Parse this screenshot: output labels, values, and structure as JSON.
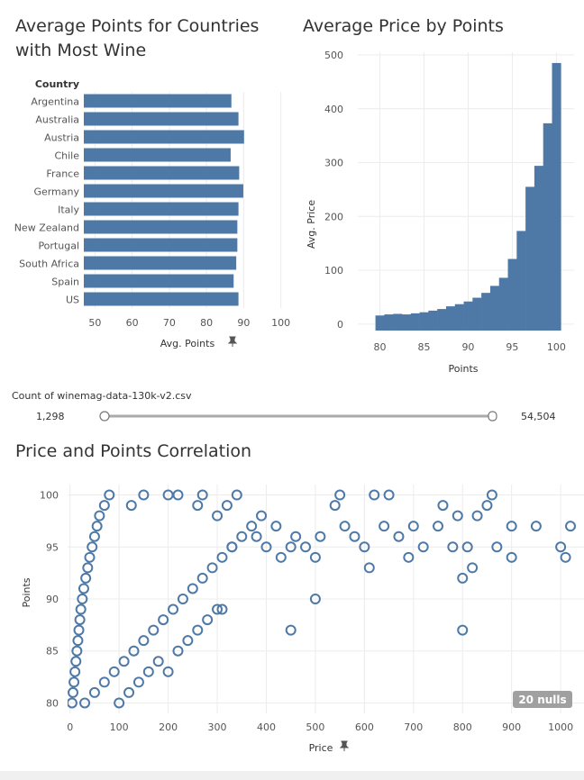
{
  "colors": {
    "bar": "#4e79a7",
    "grid": "#ececec",
    "axis": "#555555",
    "nulls_bg": "#a0a0a0"
  },
  "chart_data": [
    {
      "type": "bar",
      "orientation": "horizontal",
      "title": "Average Points for Countries with Most Wine",
      "title_lines": [
        "Average Points for Countries",
        "with Most Wine"
      ],
      "category_header": "Country",
      "categories": [
        "Argentina",
        "Australia",
        "Austria",
        "Chile",
        "France",
        "Germany",
        "Italy",
        "New Zealand",
        "Portugal",
        "South Africa",
        "Spain",
        "US"
      ],
      "values": [
        86.7,
        88.6,
        90.1,
        86.5,
        88.8,
        89.9,
        88.6,
        88.3,
        88.3,
        88.0,
        87.3,
        88.6
      ],
      "xlabel": "Avg. Points",
      "xlim": [
        47,
        103
      ],
      "xticks": [
        50,
        60,
        70,
        80,
        90,
        100
      ],
      "tick_labels": [
        "50",
        "60",
        "70",
        "80",
        "90",
        "100"
      ],
      "pin_icon": "pin-icon"
    },
    {
      "type": "bar",
      "title": "Average Price by Points",
      "x": [
        80,
        81,
        82,
        83,
        84,
        85,
        86,
        87,
        88,
        89,
        90,
        91,
        92,
        93,
        94,
        95,
        96,
        97,
        98,
        99,
        100
      ],
      "values": [
        16,
        18,
        19,
        18,
        20,
        22,
        25,
        28,
        33,
        37,
        42,
        49,
        58,
        71,
        86,
        121,
        173,
        255,
        294,
        373,
        485
      ],
      "xlabel": "Points",
      "ylabel": "Avg. Price",
      "xlim": [
        77.5,
        102
      ],
      "ylim": [
        -12,
        505
      ],
      "xticks": [
        80,
        85,
        90,
        95,
        100
      ],
      "xtick_labels": [
        "80",
        "85",
        "90",
        "95",
        "100"
      ],
      "yticks": [
        0,
        100,
        200,
        300,
        400,
        500
      ],
      "ytick_labels": [
        "0",
        "100",
        "200",
        "300",
        "400",
        "500"
      ]
    },
    {
      "type": "scatter",
      "title": "Price and Points Correlation",
      "xlabel": "Price",
      "ylabel": "Points",
      "xlim": [
        -5,
        1020
      ],
      "ylim": [
        79,
        101
      ],
      "xticks": [
        0,
        100,
        200,
        300,
        400,
        500,
        600,
        700,
        800,
        900,
        1000
      ],
      "xtick_labels": [
        "0",
        "100",
        "200",
        "300",
        "400",
        "500",
        "600",
        "700",
        "800",
        "900",
        "1000"
      ],
      "yticks": [
        80,
        85,
        90,
        95,
        100
      ],
      "ytick_labels": [
        "80",
        "85",
        "90",
        "95",
        "100"
      ],
      "nulls_badge": "20 nulls",
      "pin_icon": "pin-icon",
      "points": [
        [
          4,
          80
        ],
        [
          6,
          81
        ],
        [
          8,
          82
        ],
        [
          10,
          83
        ],
        [
          12,
          84
        ],
        [
          14,
          85
        ],
        [
          16,
          86
        ],
        [
          18,
          87
        ],
        [
          20,
          88
        ],
        [
          22,
          89
        ],
        [
          25,
          90
        ],
        [
          28,
          91
        ],
        [
          32,
          92
        ],
        [
          36,
          93
        ],
        [
          40,
          94
        ],
        [
          45,
          95
        ],
        [
          50,
          96
        ],
        [
          55,
          97
        ],
        [
          60,
          98
        ],
        [
          70,
          99
        ],
        [
          80,
          100
        ],
        [
          30,
          80
        ],
        [
          50,
          81
        ],
        [
          70,
          82
        ],
        [
          90,
          83
        ],
        [
          110,
          84
        ],
        [
          130,
          85
        ],
        [
          150,
          86
        ],
        [
          170,
          87
        ],
        [
          190,
          88
        ],
        [
          210,
          89
        ],
        [
          230,
          90
        ],
        [
          250,
          91
        ],
        [
          270,
          92
        ],
        [
          290,
          93
        ],
        [
          310,
          94
        ],
        [
          330,
          95
        ],
        [
          350,
          96
        ],
        [
          370,
          97
        ],
        [
          390,
          98
        ],
        [
          100,
          80
        ],
        [
          120,
          81
        ],
        [
          140,
          82
        ],
        [
          160,
          83
        ],
        [
          180,
          84
        ],
        [
          200,
          83
        ],
        [
          220,
          85
        ],
        [
          240,
          86
        ],
        [
          260,
          87
        ],
        [
          280,
          88
        ],
        [
          300,
          89
        ],
        [
          125,
          99
        ],
        [
          150,
          100
        ],
        [
          200,
          100
        ],
        [
          220,
          100
        ],
        [
          260,
          99
        ],
        [
          270,
          100
        ],
        [
          300,
          98
        ],
        [
          320,
          99
        ],
        [
          340,
          100
        ],
        [
          380,
          96
        ],
        [
          400,
          95
        ],
        [
          420,
          97
        ],
        [
          430,
          94
        ],
        [
          450,
          95
        ],
        [
          450,
          87
        ],
        [
          460,
          96
        ],
        [
          480,
          95
        ],
        [
          500,
          94
        ],
        [
          500,
          90
        ],
        [
          510,
          96
        ],
        [
          540,
          99
        ],
        [
          550,
          100
        ],
        [
          560,
          97
        ],
        [
          580,
          96
        ],
        [
          600,
          95
        ],
        [
          610,
          93
        ],
        [
          620,
          100
        ],
        [
          640,
          97
        ],
        [
          650,
          100
        ],
        [
          670,
          96
        ],
        [
          690,
          94
        ],
        [
          700,
          97
        ],
        [
          720,
          95
        ],
        [
          750,
          97
        ],
        [
          760,
          99
        ],
        [
          780,
          95
        ],
        [
          790,
          98
        ],
        [
          800,
          92
        ],
        [
          800,
          87
        ],
        [
          810,
          95
        ],
        [
          820,
          93
        ],
        [
          830,
          98
        ],
        [
          850,
          99
        ],
        [
          870,
          95
        ],
        [
          900,
          97
        ],
        [
          950,
          97
        ],
        [
          1000,
          95
        ],
        [
          1010,
          94
        ],
        [
          1020,
          97
        ],
        [
          900,
          94
        ],
        [
          860,
          100
        ],
        [
          330,
          95
        ],
        [
          310,
          89
        ]
      ]
    }
  ],
  "filter": {
    "label": "Count of winemag-data-130k-v2.csv",
    "min_label": "1,298",
    "max_label": "54,504",
    "min": 1298,
    "max": 54504,
    "selected_min": 1298,
    "selected_max": 54504
  }
}
